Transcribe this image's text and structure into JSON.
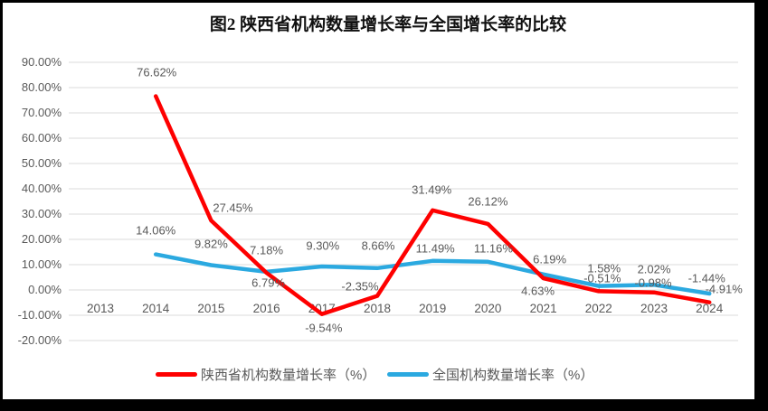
{
  "title": "图2 陕西省机构数量增长率与全国增长率的比较",
  "chart_data": {
    "type": "line",
    "categories": [
      "2013",
      "2014",
      "2015",
      "2016",
      "2017",
      "2018",
      "2019",
      "2020",
      "2021",
      "2022",
      "2023",
      "2024"
    ],
    "series": [
      {
        "id": "shaanxi",
        "name": "陕西省机构数量增长率（%）",
        "color": "#FE0000",
        "values": [
          null,
          76.62,
          27.45,
          6.79,
          -9.54,
          -2.35,
          31.49,
          26.12,
          4.63,
          -0.51,
          -0.98,
          -4.91
        ],
        "data_labels": [
          "76.62%",
          "27.45%",
          "6.79%",
          "-9.54%",
          "-2.35%",
          "31.49%",
          "26.12%",
          "4.63%",
          "-0.51%",
          "-0.98%",
          "-4.91%"
        ]
      },
      {
        "id": "national",
        "name": "全国机构数量增长率（%）",
        "color": "#2BA9E0",
        "values": [
          null,
          14.06,
          9.82,
          7.18,
          9.3,
          8.66,
          11.49,
          11.16,
          6.19,
          1.58,
          2.02,
          -1.44
        ],
        "data_labels": [
          "14.06%",
          "9.82%",
          "7.18%",
          "9.30%",
          "8.66%",
          "11.49%",
          "11.16%",
          "6.19%",
          "1.58%",
          "2.02%",
          "-1.44%"
        ]
      }
    ],
    "y_axis": {
      "min": -20,
      "max": 90,
      "step": 10,
      "tick_labels": [
        "90.00%",
        "80.00%",
        "70.00%",
        "60.00%",
        "50.00%",
        "40.00%",
        "30.00%",
        "20.00%",
        "10.00%",
        "0.00%",
        "-10.00%",
        "-20.00%"
      ]
    },
    "x_axis": {
      "tick_labels": [
        "2013",
        "2014",
        "2015",
        "2016",
        "2017",
        "2018",
        "2019",
        "2020",
        "2021",
        "2022",
        "2023",
        "2024"
      ]
    },
    "grid": true,
    "legend_position": "bottom",
    "colors": {
      "grid": "#E2E2E2",
      "text": "#595959",
      "leader_line": "#A6A6A6",
      "background": "#FFFFFF",
      "frame": "#000000"
    }
  }
}
